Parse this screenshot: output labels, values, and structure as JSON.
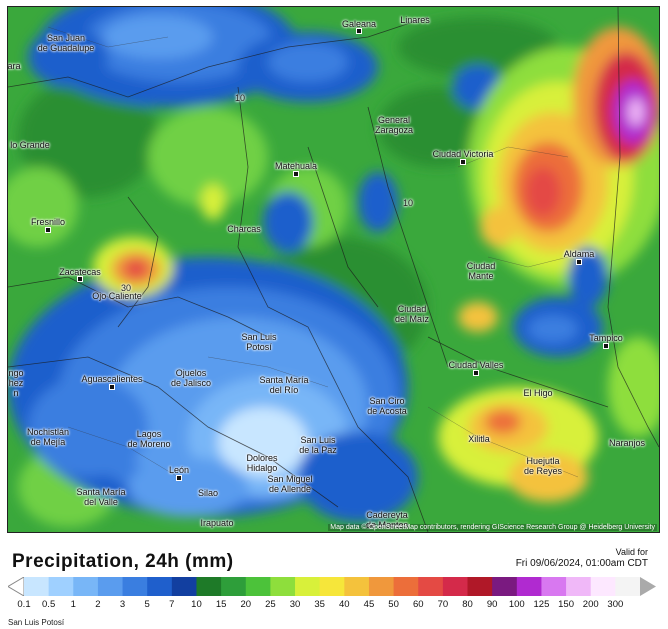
{
  "header": {
    "title": "Precipitation, 24h (mm)",
    "valid_label": "Valid for",
    "valid_time": "Fri 09/06/2024, 01:00am CDT"
  },
  "legend": {
    "values": [
      "0.1",
      "0.5",
      "1",
      "2",
      "3",
      "5",
      "7",
      "10",
      "15",
      "20",
      "25",
      "30",
      "35",
      "40",
      "45",
      "50",
      "60",
      "70",
      "80",
      "90",
      "100",
      "125",
      "150",
      "200",
      "300"
    ],
    "colors": [
      "#c8e6ff",
      "#9fd0ff",
      "#78b6f7",
      "#5a9cee",
      "#3a7ee0",
      "#1f5fcc",
      "#123fa0",
      "#1e7a28",
      "#2e9e3a",
      "#4cc23a",
      "#8ede3c",
      "#d8f03a",
      "#f6e63a",
      "#f4c23c",
      "#f0983c",
      "#ec6e3a",
      "#e44a44",
      "#d42a4a",
      "#b01828",
      "#7a1a80",
      "#b02ad0",
      "#d878f0",
      "#f0b8f8",
      "#fde8ff",
      "#f4f4f4"
    ]
  },
  "map": {
    "attribution": "Map data © OpenStreetMap contributors, rendering GIScience Research Group @ Heidelberg University",
    "cities": [
      {
        "name": "San Juan\nde Guadalupe"
      },
      {
        "name": "Galeana"
      },
      {
        "name": "Linares"
      },
      {
        "name": "lo Grande"
      },
      {
        "name": "Matehuala"
      },
      {
        "name": "General\nZaragoza"
      },
      {
        "name": "Ciudad Victoria"
      },
      {
        "name": "Fresnillo"
      },
      {
        "name": "Charcas"
      },
      {
        "name": "Zacatecas"
      },
      {
        "name": "Ojo Caliente"
      },
      {
        "name": "Ciudad\nMante"
      },
      {
        "name": "Aldama"
      },
      {
        "name": "Ciudad\ndel Maíz"
      },
      {
        "name": "San Luis\nPotosí"
      },
      {
        "name": "Tampico"
      },
      {
        "name": "Aguascalientes"
      },
      {
        "name": "Ojuelos\nde Jalisco"
      },
      {
        "name": "Santa María\ndel Río"
      },
      {
        "name": "Ciudad Valles"
      },
      {
        "name": "El Higo"
      },
      {
        "name": "Nochistlán\nde Mejía"
      },
      {
        "name": "Lagos\nde Moreno"
      },
      {
        "name": "San Ciro\nde Acosta"
      },
      {
        "name": "Xilitla"
      },
      {
        "name": "Naranjos"
      },
      {
        "name": "San Luis\nde la Paz"
      },
      {
        "name": "Dolores\nHidalgo"
      },
      {
        "name": "Huejutla\nde Reyes"
      },
      {
        "name": "León"
      },
      {
        "name": "Santa María\ndel Valle"
      },
      {
        "name": "Silao"
      },
      {
        "name": "San Miguel\nde Allende"
      },
      {
        "name": "Irapuato"
      },
      {
        "name": "Cadereyta\nde Montes"
      },
      {
        "name": "ngo\nhez\nn"
      },
      {
        "name": "ara"
      },
      {
        "name": "10"
      },
      {
        "name": "10"
      },
      {
        "name": "30"
      }
    ]
  },
  "footer": {
    "label": "San Luis Potosí"
  }
}
